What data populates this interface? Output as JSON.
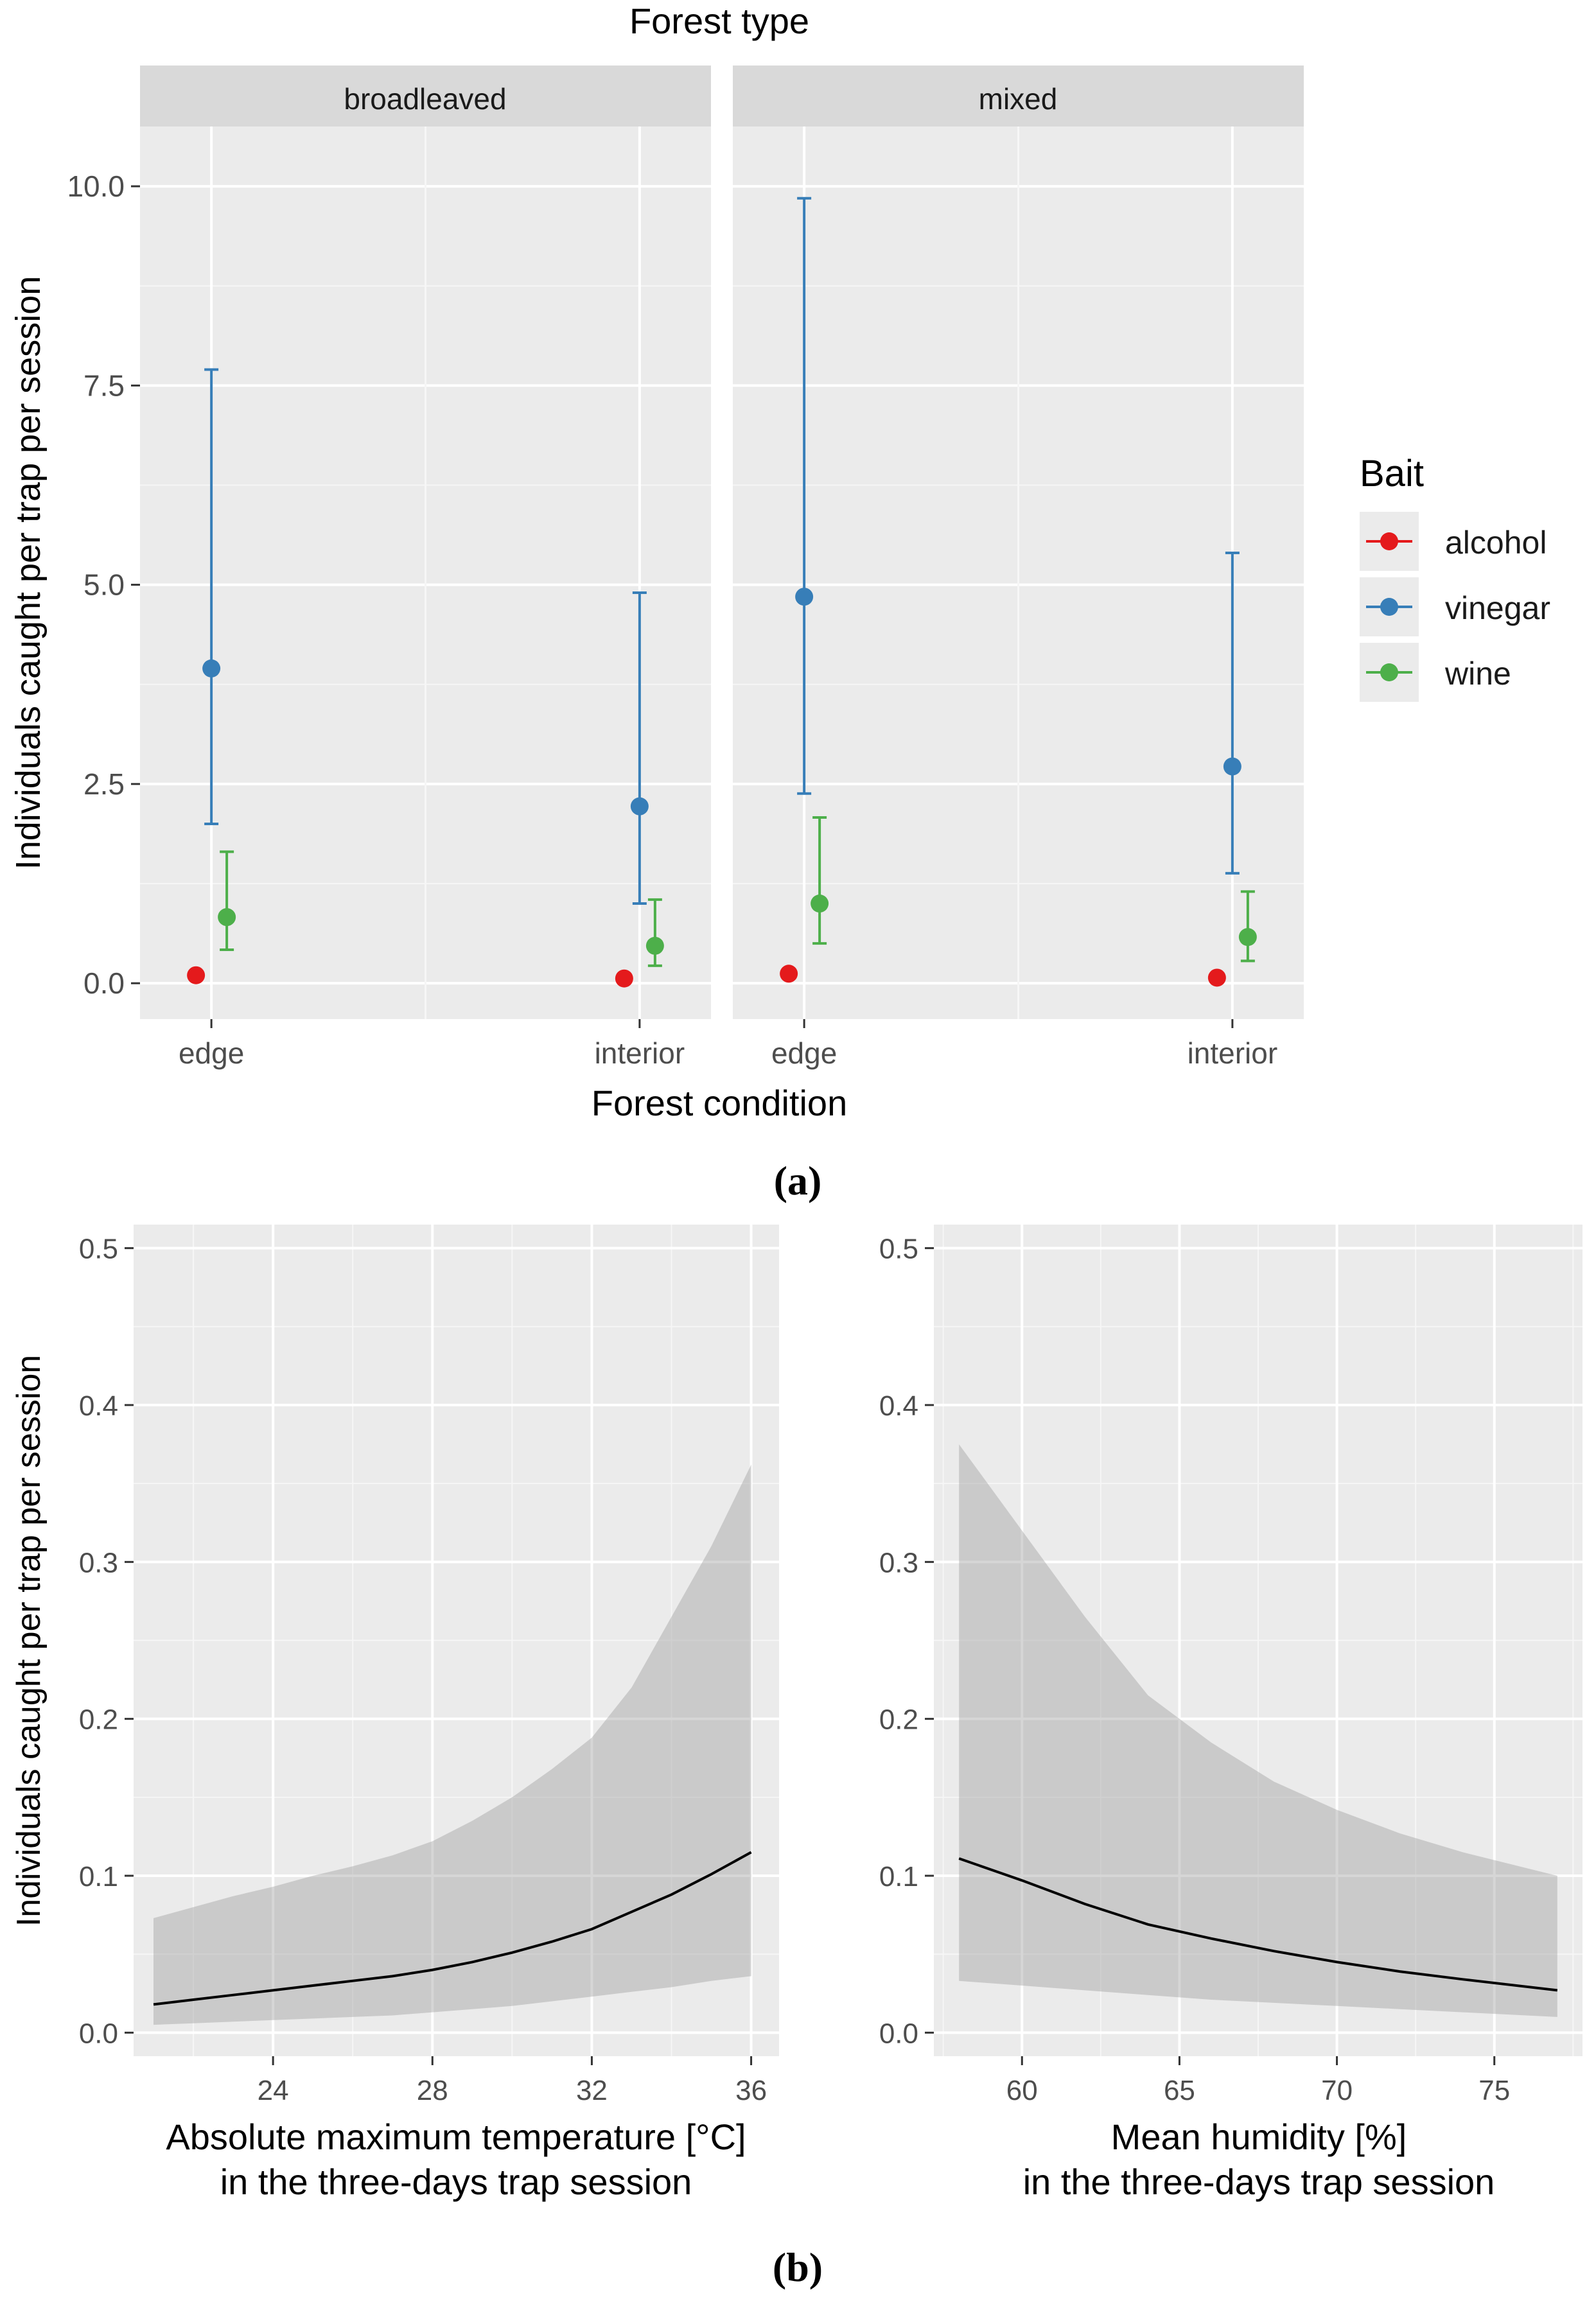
{
  "figure": {
    "panel_a_caption": "(a)",
    "panel_b_caption": "(b)"
  },
  "chart_data": [
    {
      "type": "scatter",
      "subtype": "point-errorbar-faceted",
      "title": "Forest type",
      "xlabel": "Forest condition",
      "ylabel": "Individuals caught per trap per session",
      "ylim": [
        -0.45,
        10.75
      ],
      "yticks": [
        0.0,
        2.5,
        5.0,
        7.5,
        10.0
      ],
      "ytick_labels": [
        "0.0",
        "2.5",
        "5.0",
        "7.5",
        "10.0"
      ],
      "categories": [
        "edge",
        "interior"
      ],
      "legend": {
        "title": "Bait",
        "position": "right",
        "entries": [
          "alcohol",
          "vinegar",
          "wine"
        ]
      },
      "colors": {
        "alcohol": "#e41a1c",
        "vinegar": "#377eb8",
        "wine": "#4daf4a"
      },
      "facets": [
        {
          "name": "broadleaved",
          "series": [
            {
              "name": "alcohol",
              "values": [
                0.1,
                0.06
              ],
              "lower": [
                null,
                null
              ],
              "upper": [
                null,
                null
              ]
            },
            {
              "name": "vinegar",
              "values": [
                3.95,
                2.22
              ],
              "lower": [
                2.0,
                1.0
              ],
              "upper": [
                7.7,
                4.9
              ]
            },
            {
              "name": "wine",
              "values": [
                0.83,
                0.47
              ],
              "lower": [
                0.42,
                0.22
              ],
              "upper": [
                1.65,
                1.05
              ]
            }
          ]
        },
        {
          "name": "mixed",
          "series": [
            {
              "name": "alcohol",
              "values": [
                0.12,
                0.07
              ],
              "lower": [
                null,
                null
              ],
              "upper": [
                null,
                null
              ]
            },
            {
              "name": "vinegar",
              "values": [
                4.85,
                2.72
              ],
              "lower": [
                2.38,
                1.38
              ],
              "upper": [
                9.85,
                5.4
              ]
            },
            {
              "name": "wine",
              "values": [
                1.0,
                0.58
              ],
              "lower": [
                0.5,
                0.28
              ],
              "upper": [
                2.08,
                1.15
              ]
            }
          ]
        }
      ]
    },
    {
      "type": "line",
      "subtype": "line-with-ribbon",
      "xlabel": "Absolute maximum temperature [°C]",
      "xlabel2": "in the three-days trap session",
      "ylabel": "Individuals caught per trap per session",
      "xlim": [
        20.5,
        36.7
      ],
      "ylim": [
        -0.015,
        0.515
      ],
      "xticks": [
        24,
        28,
        32,
        36
      ],
      "xtick_labels": [
        "24",
        "28",
        "32",
        "36"
      ],
      "yticks": [
        0.0,
        0.1,
        0.2,
        0.3,
        0.4,
        0.5
      ],
      "ytick_labels": [
        "0.0",
        "0.1",
        "0.2",
        "0.3",
        "0.4",
        "0.5"
      ],
      "x": [
        21,
        22,
        23,
        24,
        25,
        26,
        27,
        28,
        29,
        30,
        31,
        32,
        33,
        34,
        35,
        36
      ],
      "y": [
        0.018,
        0.021,
        0.024,
        0.027,
        0.03,
        0.033,
        0.036,
        0.04,
        0.045,
        0.051,
        0.058,
        0.066,
        0.077,
        0.088,
        0.101,
        0.115
      ],
      "lower": [
        0.005,
        0.006,
        0.007,
        0.008,
        0.009,
        0.01,
        0.011,
        0.013,
        0.015,
        0.017,
        0.02,
        0.023,
        0.026,
        0.029,
        0.033,
        0.036
      ],
      "upper": [
        0.073,
        0.08,
        0.087,
        0.093,
        0.1,
        0.106,
        0.113,
        0.122,
        0.135,
        0.15,
        0.168,
        0.188,
        0.22,
        0.265,
        0.31,
        0.362
      ]
    },
    {
      "type": "line",
      "subtype": "line-with-ribbon",
      "xlabel": "Mean humidity [%]",
      "xlabel2": "in the three-days trap session",
      "ylabel": "",
      "xlim": [
        57.2,
        77.8
      ],
      "ylim": [
        -0.015,
        0.515
      ],
      "xticks": [
        60,
        65,
        70,
        75
      ],
      "xtick_labels": [
        "60",
        "65",
        "70",
        "75"
      ],
      "yticks": [
        0.0,
        0.1,
        0.2,
        0.3,
        0.4,
        0.5
      ],
      "ytick_labels": [
        "0.0",
        "0.1",
        "0.2",
        "0.3",
        "0.4",
        "0.5"
      ],
      "x": [
        58,
        60,
        62,
        64,
        66,
        68,
        70,
        72,
        74,
        77
      ],
      "y": [
        0.111,
        0.097,
        0.082,
        0.069,
        0.06,
        0.052,
        0.045,
        0.039,
        0.034,
        0.027
      ],
      "lower": [
        0.033,
        0.03,
        0.027,
        0.024,
        0.021,
        0.019,
        0.017,
        0.015,
        0.013,
        0.01
      ],
      "upper": [
        0.375,
        0.32,
        0.265,
        0.215,
        0.185,
        0.16,
        0.142,
        0.127,
        0.115,
        0.1
      ]
    }
  ]
}
